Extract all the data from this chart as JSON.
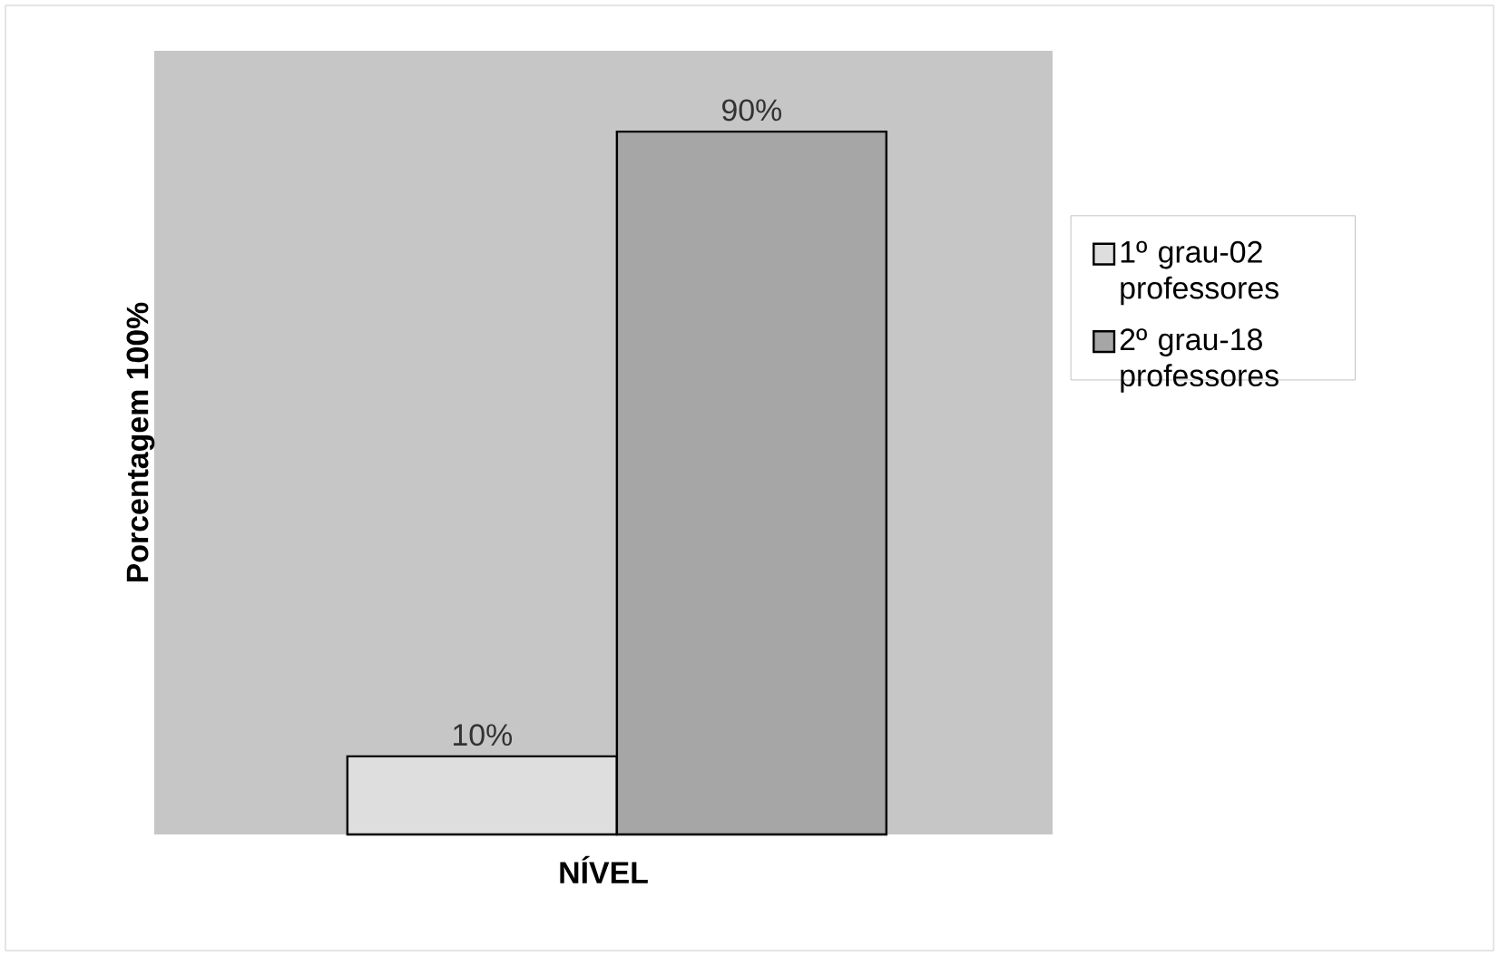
{
  "chart_data": {
    "type": "bar",
    "xlabel": "NÍVEL",
    "ylabel": "Porcentagem 100%",
    "categories": [
      null
    ],
    "series": [
      {
        "name": "1º grau-02 professores",
        "color": "#dedede",
        "values": [
          10
        ],
        "value_labels": [
          "10%"
        ]
      },
      {
        "name": "2º grau-18 professores",
        "color": "#a6a6a6",
        "values": [
          90
        ],
        "value_labels": [
          "90%"
        ]
      }
    ],
    "legend": "right"
  }
}
